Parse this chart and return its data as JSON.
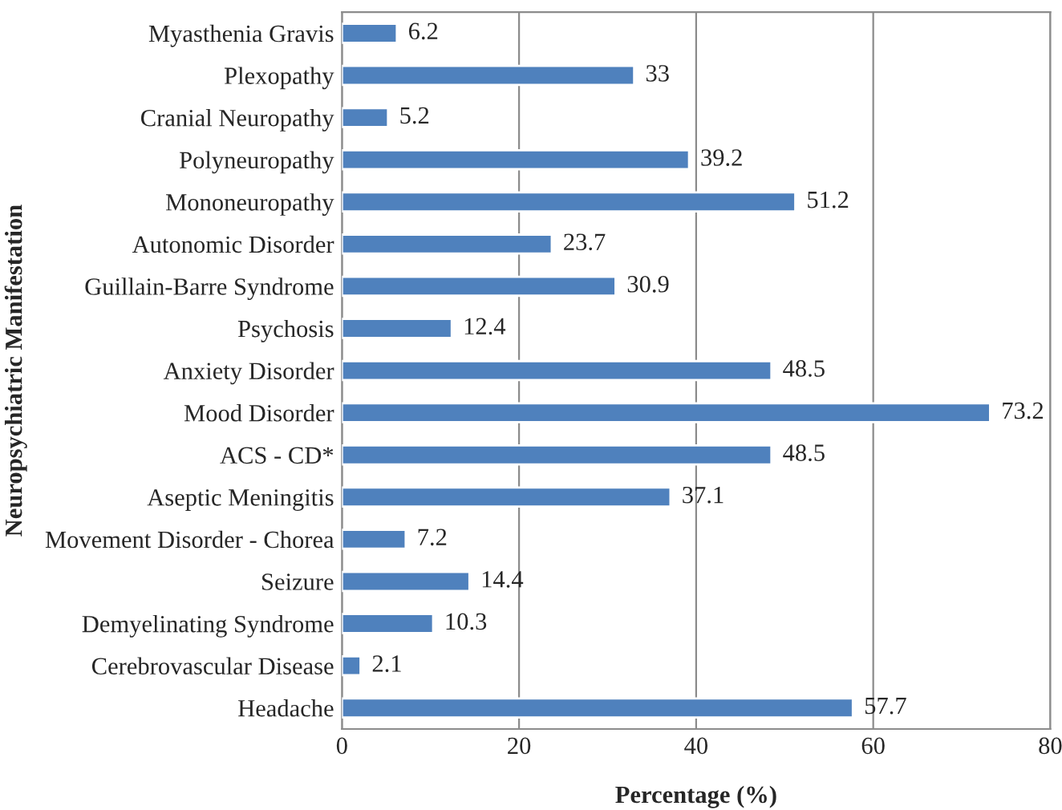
{
  "chart_data": {
    "type": "bar",
    "orientation": "horizontal",
    "xlabel": "Percentage (%)",
    "ylabel": "Neuropsychiatric Manifestation",
    "categories": [
      "Myasthenia Gravis",
      "Plexopathy",
      "Cranial Neuropathy",
      "Polyneuropathy",
      "Mononeuropathy",
      "Autonomic Disorder",
      "Guillain-Barre Syndrome",
      "Psychosis",
      "Anxiety Disorder",
      "Mood Disorder",
      "ACS - CD*",
      "Aseptic Meningitis",
      "Movement Disorder - Chorea",
      "Seizure",
      "Demyelinating Syndrome",
      "Cerebrovascular Disease",
      "Headache"
    ],
    "values": [
      6.2,
      33,
      5.2,
      39.2,
      51.2,
      23.7,
      30.9,
      12.4,
      48.5,
      73.2,
      48.5,
      37.1,
      7.2,
      14.4,
      10.3,
      2.1,
      57.7
    ],
    "color": "#4f81bd",
    "xlim": [
      0,
      80
    ],
    "xticks": [
      0,
      20,
      40,
      60,
      80
    ],
    "grid": "x",
    "data_labels": true
  }
}
